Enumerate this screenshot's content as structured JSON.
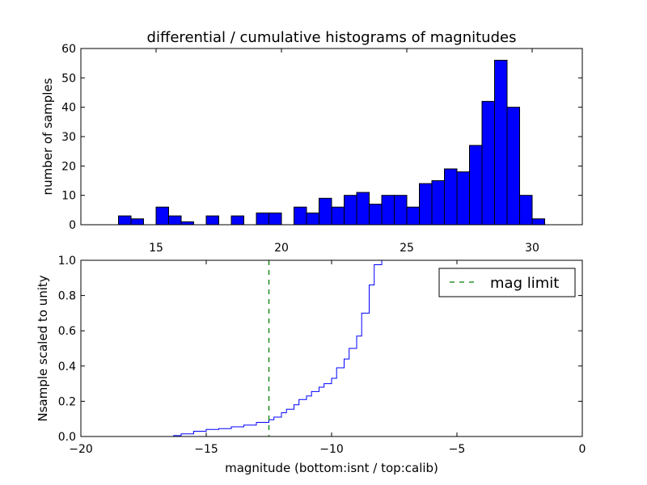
{
  "chart_data": [
    {
      "type": "bar",
      "title": "differential / cumulative histograms of magnitudes",
      "xlabel": "",
      "ylabel": "number of samples",
      "xlim": [
        12,
        32
      ],
      "ylim": [
        0,
        60
      ],
      "xticks": [
        "15",
        "20",
        "25",
        "30"
      ],
      "yticks": [
        "0",
        "10",
        "20",
        "30",
        "40",
        "50",
        "60"
      ],
      "bar_color": "#0000ff",
      "bin_width": 0.5,
      "bins": [
        {
          "x": 13.5,
          "value": 3
        },
        {
          "x": 14.0,
          "value": 2
        },
        {
          "x": 15.0,
          "value": 6
        },
        {
          "x": 15.5,
          "value": 3
        },
        {
          "x": 16.0,
          "value": 1
        },
        {
          "x": 17.0,
          "value": 3
        },
        {
          "x": 18.0,
          "value": 3
        },
        {
          "x": 19.0,
          "value": 4
        },
        {
          "x": 19.5,
          "value": 4
        },
        {
          "x": 20.5,
          "value": 6
        },
        {
          "x": 21.0,
          "value": 4
        },
        {
          "x": 21.5,
          "value": 9
        },
        {
          "x": 22.0,
          "value": 6
        },
        {
          "x": 22.5,
          "value": 10
        },
        {
          "x": 23.0,
          "value": 11
        },
        {
          "x": 23.5,
          "value": 7
        },
        {
          "x": 24.0,
          "value": 10
        },
        {
          "x": 24.5,
          "value": 10
        },
        {
          "x": 25.0,
          "value": 6
        },
        {
          "x": 25.5,
          "value": 14
        },
        {
          "x": 26.0,
          "value": 15
        },
        {
          "x": 26.5,
          "value": 19
        },
        {
          "x": 27.0,
          "value": 18
        },
        {
          "x": 27.5,
          "value": 27
        },
        {
          "x": 28.0,
          "value": 42
        },
        {
          "x": 28.5,
          "value": 56
        },
        {
          "x": 29.0,
          "value": 40
        },
        {
          "x": 29.5,
          "value": 10
        },
        {
          "x": 30.0,
          "value": 2
        }
      ]
    },
    {
      "type": "line",
      "title": "",
      "xlabel": "magnitude (bottom:isnt / top:calib)",
      "ylabel": "Nsample scaled to unity",
      "xlim": [
        -20,
        0
      ],
      "ylim": [
        0,
        1
      ],
      "xticks": [
        "−20",
        "−15",
        "−10",
        "−5",
        "0"
      ],
      "yticks": [
        "0.0",
        "0.2",
        "0.4",
        "0.6",
        "0.8",
        "1.0"
      ],
      "legend": {
        "position": "top-right",
        "entries": [
          "mag limit"
        ]
      },
      "series": [
        {
          "name": "",
          "color": "#0000ff",
          "style": "step",
          "x": [
            -20,
            -16.3,
            -16.0,
            -15.5,
            -15.0,
            -14.5,
            -14.0,
            -13.5,
            -13.0,
            -12.5,
            -12.3,
            -12.0,
            -11.8,
            -11.5,
            -11.3,
            -11.0,
            -10.8,
            -10.5,
            -10.3,
            -10.0,
            -9.8,
            -9.5,
            -9.3,
            -9.0,
            -8.8,
            -8.5,
            -8.3,
            -8.0,
            0
          ],
          "y": [
            0.0,
            0.005,
            0.015,
            0.03,
            0.04,
            0.045,
            0.055,
            0.065,
            0.08,
            0.095,
            0.11,
            0.135,
            0.155,
            0.18,
            0.21,
            0.23,
            0.255,
            0.28,
            0.3,
            0.33,
            0.39,
            0.44,
            0.5,
            0.57,
            0.7,
            0.86,
            0.975,
            1.0,
            1.0
          ]
        },
        {
          "name": "mag limit",
          "color": "#008000",
          "style": "dashed-vertical",
          "x_value": -12.5
        }
      ]
    }
  ]
}
